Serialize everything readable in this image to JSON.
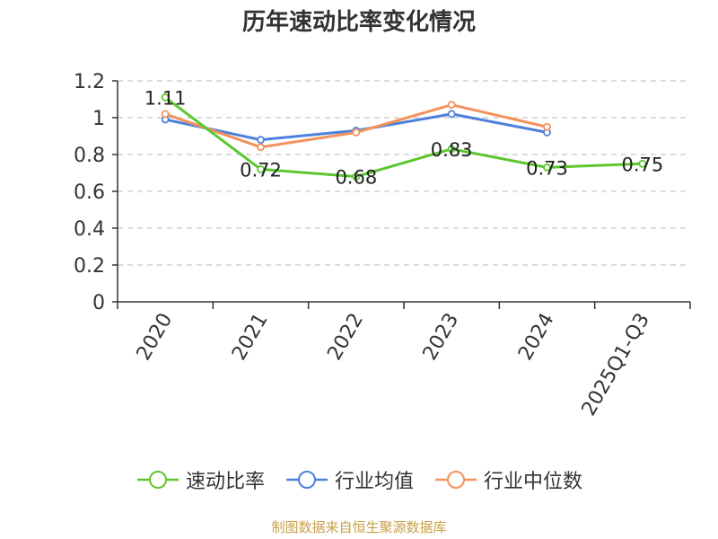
{
  "chart_data": {
    "type": "line",
    "title": "历年速动比率变化情况",
    "categories": [
      "2020",
      "2021",
      "2022",
      "2023",
      "2024",
      "2025Q1-Q3"
    ],
    "ylim": [
      0,
      1.2
    ],
    "yticks": [
      "0",
      "0.2",
      "0.4",
      "0.6",
      "0.8",
      "1",
      "1.2"
    ],
    "grid": true,
    "legend_position": "bottom",
    "series": [
      {
        "name": "速动比率",
        "color": "#5cc72e",
        "values": [
          1.11,
          0.72,
          0.68,
          0.83,
          0.73,
          0.75
        ],
        "labels": [
          "1.11",
          "0.72",
          "0.68",
          "0.83",
          "0.73",
          "0.75"
        ]
      },
      {
        "name": "行业均值",
        "color": "#4e80dc",
        "values": [
          0.99,
          0.88,
          0.93,
          1.02,
          0.92,
          null
        ]
      },
      {
        "name": "行业中位数",
        "color": "#f4925c",
        "values": [
          1.02,
          0.84,
          0.92,
          1.07,
          0.95,
          null
        ]
      }
    ]
  },
  "source": "制图数据来自恒生聚源数据库"
}
